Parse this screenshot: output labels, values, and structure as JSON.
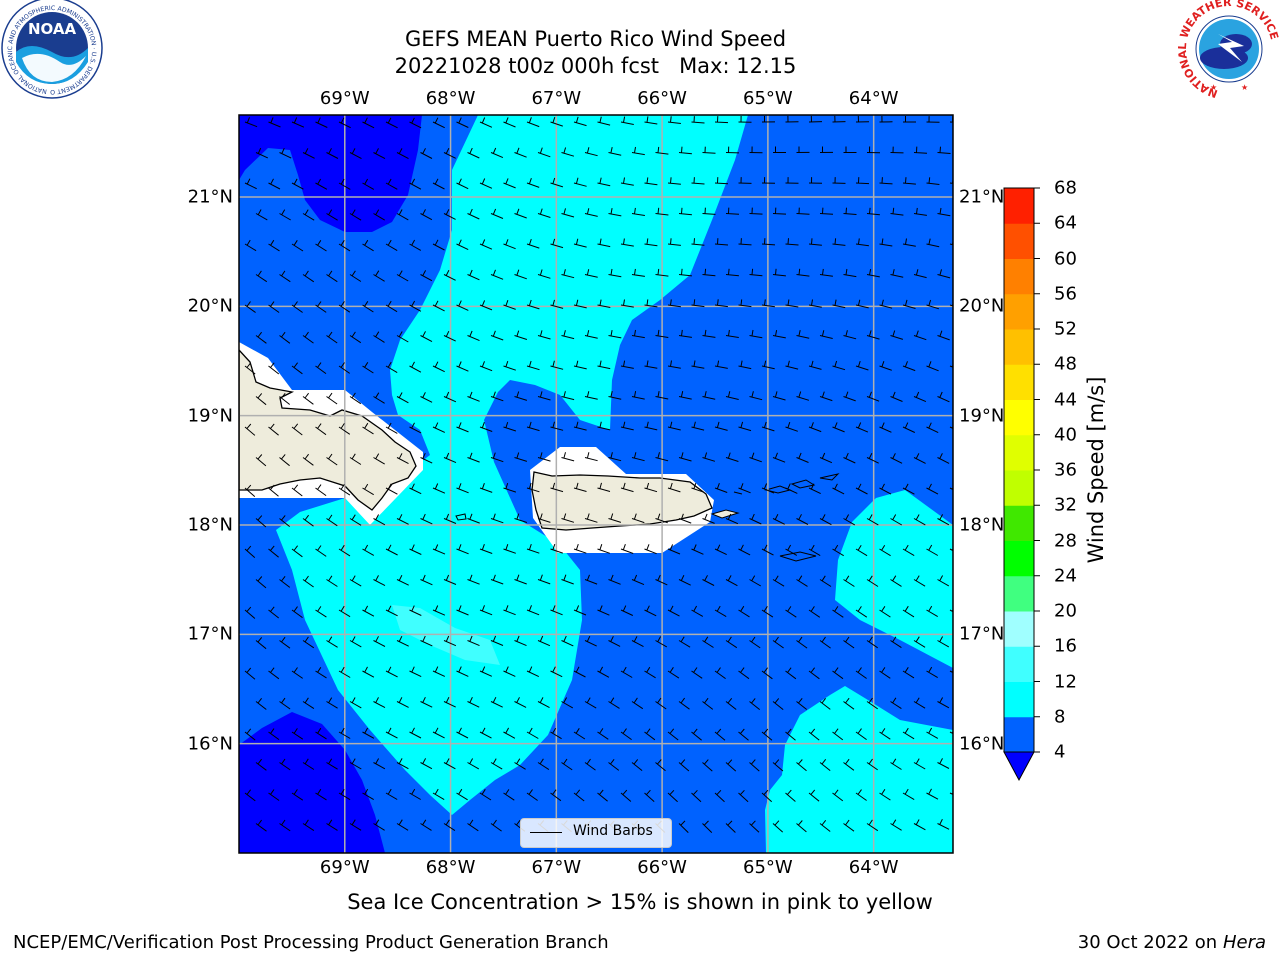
{
  "title_line1": "GEFS MEAN Puerto Rico Wind Speed",
  "title_line2": "20221028 t00z 000h fcst   Max: 12.15",
  "logos": {
    "left": "noaa-logo",
    "left_ring_text": "NATIONAL OCEANIC AND ATMOSPHERIC ADMINISTRATION · U.S. DEPARTMENT OF COMMERCE",
    "left_center_text": "NOAA",
    "right": "nws-logo",
    "right_ring_text": "NATIONAL WEATHER SERVICE"
  },
  "map": {
    "projection": "PlateCarree",
    "lon_labels": [
      "69°W",
      "68°W",
      "67°W",
      "66°W",
      "65°W",
      "64°W"
    ],
    "lon_values": [
      -69,
      -68,
      -67,
      -66,
      -65,
      -64
    ],
    "lat_labels": [
      "21°N",
      "20°N",
      "19°N",
      "18°N",
      "17°N",
      "16°N"
    ],
    "lat_values": [
      21,
      20,
      19,
      18,
      17,
      16
    ],
    "extent": {
      "lon_min": -70.0,
      "lon_max": -63.25,
      "lat_min": 15.0,
      "lat_max": 21.75
    },
    "gridlines": true,
    "legend_label": "Wind Barbs",
    "legend_location": "bottom-center",
    "land_color": "#eeecdc",
    "wind_barbs": true
  },
  "colorbar": {
    "label": "Wind Speed [m/s]",
    "ticks": [
      "4",
      "8",
      "12",
      "16",
      "20",
      "24",
      "28",
      "32",
      "36",
      "40",
      "44",
      "48",
      "52",
      "56",
      "60",
      "64",
      "68"
    ],
    "levels": [
      4,
      6,
      8,
      10,
      12,
      14,
      16,
      18,
      20,
      22,
      24,
      26,
      28,
      30,
      32,
      34,
      36,
      38,
      40,
      42,
      44,
      46,
      48,
      50,
      52,
      54,
      56,
      58,
      60,
      62,
      64,
      66,
      68
    ],
    "colors": [
      "#0062ff",
      "#0062ff",
      "#00ffff",
      "#00ffff",
      "#40ffff",
      "#40ffff",
      "#a0ffff",
      "#a0ffff",
      "#40ff80",
      "#40ff80",
      "#00ff00",
      "#00ff00",
      "#40e800",
      "#40e800",
      "#c0ff00",
      "#c0ff00",
      "#e0ff00",
      "#e0ff00",
      "#ffff00",
      "#ffff00",
      "#ffe000",
      "#ffe000",
      "#ffc000",
      "#ffc000",
      "#ffa000",
      "#ffa000",
      "#ff8000",
      "#ff8000",
      "#ff5000",
      "#ff5000",
      "#ff2000",
      "#ff2000"
    ],
    "under_color": "#0000ff"
  },
  "chart_data": {
    "type": "heatmap",
    "title": "GEFS MEAN Puerto Rico Wind Speed",
    "variable": "Wind Speed [m/s]",
    "max": 12.15,
    "forecast_init": "20221028 t00z",
    "forecast_hour": "000h",
    "lon_range": [
      -70.0,
      -63.25
    ],
    "lat_range": [
      15.0,
      21.75
    ],
    "color_levels": [
      4,
      8,
      12,
      16,
      20,
      24,
      28,
      32,
      36,
      40,
      44,
      48,
      52,
      56,
      60,
      64,
      68
    ],
    "regions": [
      {
        "range": "<4",
        "color": "#0000ff"
      },
      {
        "range": "4-8",
        "color": "#0062ff"
      },
      {
        "range": "8-12",
        "color": "#00ffff"
      },
      {
        "range": "12-16",
        "color": "#40ffff"
      }
    ]
  },
  "subtitle": "Sea Ice Concentration > 15% is shown in pink to yellow",
  "footer_left": "NCEP/EMC/Verification Post Processing Product Generation Branch",
  "footer_date": "30 Oct 2022 on",
  "footer_machine": "Hera"
}
